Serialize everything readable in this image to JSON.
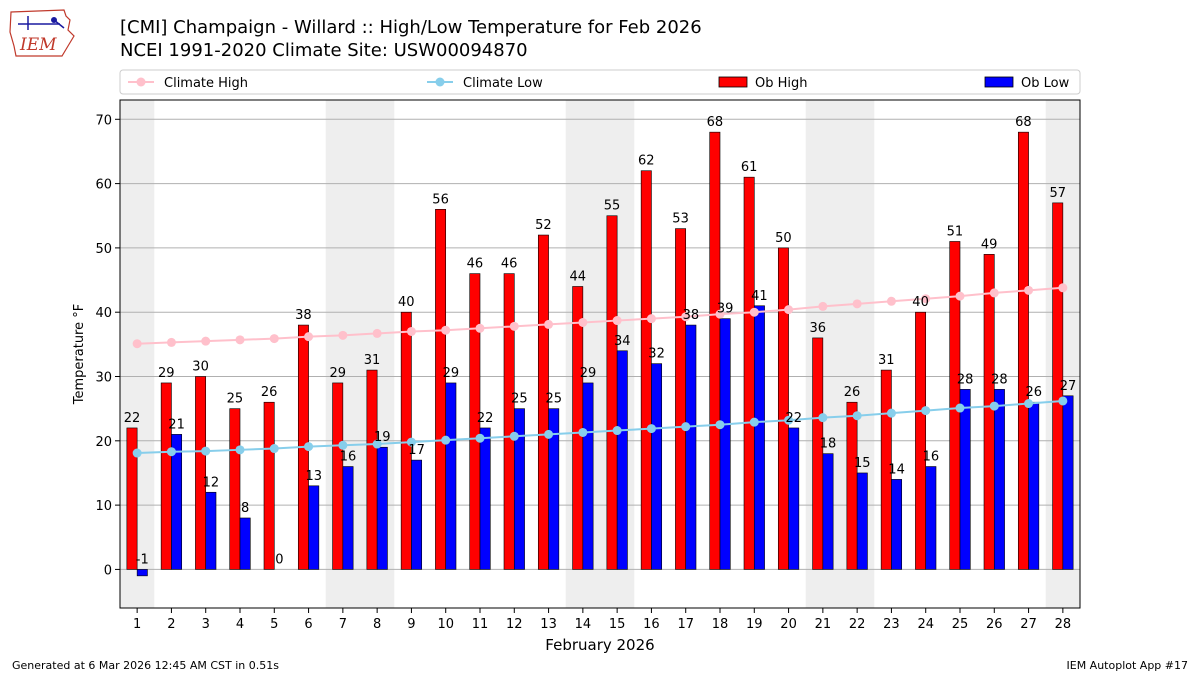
{
  "header": {
    "title_line1": "[CMI] Champaign - Willard :: High/Low Temperature for Feb 2026",
    "title_line2": "NCEI 1991-2020 Climate Site: USW00094870",
    "logo_text": "IEM"
  },
  "footer": {
    "generated": "Generated at 6 Mar 2026 12:45 AM CST in 0.51s",
    "app": "IEM Autoplot App #17"
  },
  "colors": {
    "ob_high": "#ff0000",
    "ob_low": "#0000ff",
    "climate_high": "#ffc0cb",
    "climate_low": "#87ceeb",
    "weekend_band": "#eeeeee"
  },
  "chart_data": {
    "type": "bar",
    "title": "[CMI] Champaign - Willard :: High/Low Temperature for Feb 2026",
    "xlabel": "February 2026",
    "ylabel": "Temperature °F",
    "ylim": [
      -6,
      73
    ],
    "yticks": [
      0,
      10,
      20,
      30,
      40,
      50,
      60,
      70
    ],
    "grid": true,
    "legend_position": "top",
    "categories": [
      "1",
      "2",
      "3",
      "4",
      "5",
      "6",
      "7",
      "8",
      "9",
      "10",
      "11",
      "12",
      "13",
      "14",
      "15",
      "16",
      "17",
      "18",
      "19",
      "20",
      "21",
      "22",
      "23",
      "24",
      "25",
      "26",
      "27",
      "28"
    ],
    "shaded_days": [
      1,
      7,
      8,
      14,
      15,
      21,
      22,
      28
    ],
    "series": [
      {
        "name": "Climate High",
        "kind": "line",
        "color": "#ffc0cb",
        "values": [
          35.1,
          35.3,
          35.5,
          35.7,
          35.9,
          36.2,
          36.4,
          36.7,
          37.0,
          37.2,
          37.5,
          37.8,
          38.1,
          38.4,
          38.7,
          39.0,
          39.3,
          39.7,
          40.0,
          40.4,
          40.9,
          41.3,
          41.7,
          42.1,
          42.5,
          43.0,
          43.4,
          43.8
        ]
      },
      {
        "name": "Climate Low",
        "kind": "line",
        "color": "#87ceeb",
        "values": [
          18.1,
          18.3,
          18.4,
          18.6,
          18.8,
          19.1,
          19.3,
          19.5,
          19.8,
          20.1,
          20.4,
          20.7,
          21.0,
          21.3,
          21.6,
          21.9,
          22.2,
          22.5,
          22.9,
          23.2,
          23.6,
          23.9,
          24.3,
          24.7,
          25.1,
          25.4,
          25.8,
          26.2
        ]
      },
      {
        "name": "Ob High",
        "kind": "bar",
        "color": "#ff0000",
        "values": [
          22,
          29,
          30,
          25,
          26,
          38,
          29,
          31,
          40,
          56,
          46,
          46,
          52,
          44,
          55,
          62,
          53,
          68,
          61,
          50,
          36,
          26,
          31,
          40,
          51,
          49,
          68,
          57
        ]
      },
      {
        "name": "Ob Low",
        "kind": "bar",
        "color": "#0000ff",
        "values": [
          -1,
          21,
          12,
          8,
          0,
          13,
          16,
          19,
          17,
          29,
          22,
          25,
          25,
          29,
          34,
          32,
          38,
          39,
          41,
          22,
          18,
          15,
          14,
          16,
          28,
          28,
          26,
          27
        ]
      }
    ]
  }
}
